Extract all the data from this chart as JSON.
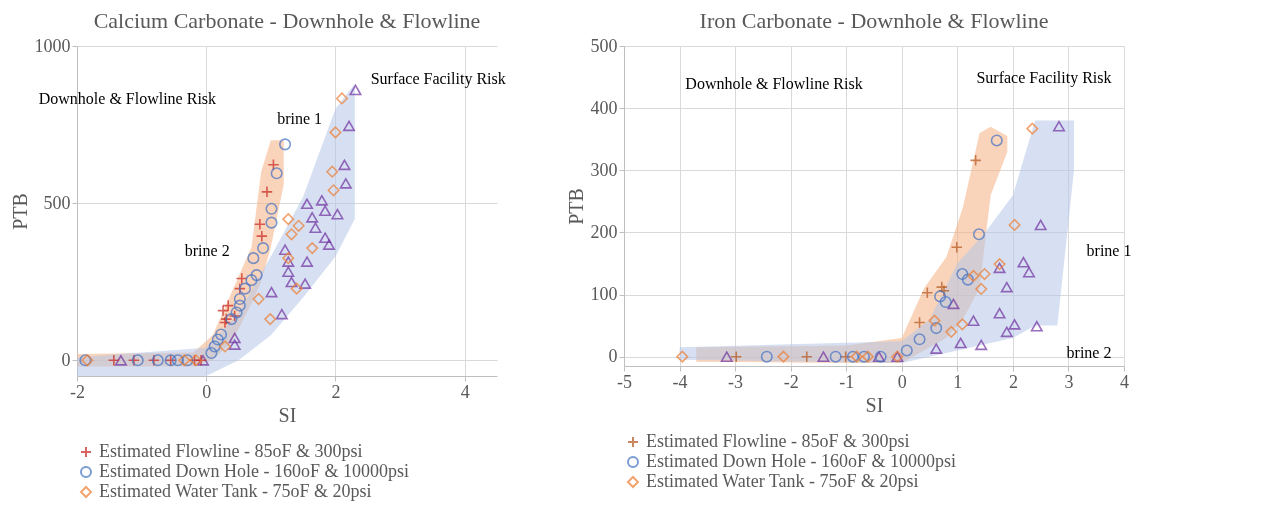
{
  "chart_data": [
    {
      "type": "scatter",
      "title": "Calcium Carbonate - Downhole & Flowline",
      "xlabel": "SI",
      "ylabel": "PTB",
      "xlim": [
        -2,
        4.5
      ],
      "ylim": [
        -50,
        1000
      ],
      "xticks": [
        -2,
        0,
        2,
        4
      ],
      "yticks": [
        0,
        500,
        1000
      ],
      "grid": true,
      "legend": "bottom",
      "series": [
        {
          "type": "line",
          "color": "#f4b183",
          "x": [
            -2,
            -0.2,
            0.1,
            0.4,
            0.7,
            0.85,
            1.0,
            1.2
          ],
          "values": [
            null,
            null,
            null,
            null,
            null,
            null,
            null,
            null
          ],
          "lower": [
            -20,
            -20,
            0,
            60,
            180,
            250,
            360,
            560
          ],
          "upper": [
            20,
            25,
            80,
            220,
            360,
            600,
            700,
            700
          ]
        },
        {
          "type": "line",
          "color": "#b4c7e7",
          "x": [
            -2,
            0,
            0.5,
            1.0,
            1.5,
            2.0,
            2.3
          ],
          "values": [
            null,
            null,
            null,
            null,
            null,
            null,
            null
          ],
          "lower": [
            -50,
            -50,
            0,
            80,
            200,
            330,
            450
          ],
          "upper": [
            10,
            40,
            150,
            330,
            520,
            800,
            880
          ]
        },
        {
          "name": "Estimated Flowline - 85oF & 300psi",
          "color": "#c8241e",
          "marker": "cross",
          "x": [
            -1.43,
            -1.12,
            -0.81,
            -0.55,
            -0.18,
            -0.08,
            0.29,
            0.26,
            0.31,
            0.34,
            0.44,
            0.52,
            0.55,
            0.86,
            0.83,
            0.94,
            1.04
          ],
          "values": [
            0,
            0,
            0,
            0,
            0,
            0,
            120,
            158,
            131,
            174,
            141,
            228,
            260,
            395,
            433,
            536,
            622
          ]
        },
        {
          "name": "Estimated Down Hole - 160oF & 10000psi",
          "color": "#4472c4",
          "marker": "circle",
          "x": [
            -1.87,
            -1.06,
            -0.75,
            -0.55,
            -0.44,
            -0.29,
            0.08,
            0.13,
            0.18,
            0.23,
            0.39,
            0.47,
            0.52,
            0.52,
            0.6,
            0.7,
            0.78,
            0.73,
            0.88,
            1.01,
            1.01,
            1.09,
            1.22
          ],
          "values": [
            0,
            0,
            0,
            0,
            0,
            0,
            23,
            44,
            66,
            82,
            131,
            152,
            174,
            195,
            228,
            255,
            271,
            325,
            357,
            438,
            482,
            595,
            687
          ]
        },
        {
          "name": "Estimated Water Tank - 75oF & 20psi",
          "color": "#ed7d31",
          "marker": "diamond",
          "x": [
            -1.84,
            -0.34,
            -0.16,
            0.29,
            0.81,
            0.99,
            1.27,
            1.43,
            1.32,
            1.27,
            1.4,
            1.64,
            1.95,
            1.97,
            2.0,
            2.1
          ],
          "values": [
            0,
            0,
            0,
            44,
            195,
            131,
            449,
            428,
            401,
            325,
            228,
            357,
            600,
            541,
            725,
            833
          ]
        },
        {
          "color": "#7030a0",
          "marker": "triangle",
          "x": [
            -1.32,
            -0.05,
            0.44,
            0.44,
            1.01,
            1.17,
            1.22,
            1.27,
            1.27,
            1.32,
            1.53,
            1.56,
            1.56,
            1.64,
            1.79,
            1.84,
            1.69,
            1.84,
            1.9,
            2.03,
            2.16,
            2.14,
            2.21,
            2.31
          ],
          "values": [
            0,
            0,
            71,
            50,
            217,
            147,
            352,
            314,
            282,
            249,
            244,
            314,
            498,
            455,
            509,
            476,
            422,
            390,
            368,
            465,
            563,
            622,
            746,
            860
          ]
        }
      ],
      "annotations": [
        "Downhole & Flowline Risk",
        "Surface Facility Risk",
        "brine 1",
        "brine 2"
      ]
    },
    {
      "type": "scatter",
      "title": "Iron Carbonate - Downhole & Flowline",
      "xlabel": "SI",
      "ylabel": "PTB",
      "xlim": [
        -5,
        4
      ],
      "ylim": [
        -15,
        500
      ],
      "xticks": [
        -5,
        -4,
        -3,
        -2,
        -1,
        0,
        1,
        2,
        3,
        4
      ],
      "yticks": [
        0,
        100,
        200,
        300,
        400,
        500
      ],
      "grid": true,
      "legend": "bottom",
      "series": [
        {
          "type": "line",
          "color": "#f4b183",
          "x": [
            -3.7,
            -1,
            0,
            0.4,
            0.8,
            1.1,
            1.4,
            1.6,
            1.9
          ],
          "values": [
            null,
            null,
            null,
            null,
            null,
            null,
            null,
            null,
            null
          ],
          "lower": [
            -8,
            -10,
            -10,
            10,
            30,
            60,
            110,
            260,
            330
          ],
          "upper": [
            15,
            18,
            30,
            110,
            160,
            240,
            360,
            370,
            355
          ]
        },
        {
          "type": "line",
          "color": "#b4c7e7",
          "x": [
            -4,
            0,
            0.5,
            1.0,
            1.5,
            2.0,
            2.4,
            2.8,
            3.1
          ],
          "values": [
            null,
            null,
            null,
            null,
            null,
            null,
            null,
            null,
            null
          ],
          "lower": [
            -5,
            -10,
            0,
            10,
            20,
            30,
            50,
            50,
            300
          ],
          "upper": [
            15,
            25,
            60,
            150,
            200,
            260,
            380,
            380,
            380
          ]
        },
        {
          "name": "Estimated Flowline - 85oF & 300psi",
          "color": "#b5541b",
          "marker": "cross",
          "x": [
            -2.98,
            -1.71,
            -1.01,
            0.32,
            0.46,
            0.76,
            0.72,
            0.99,
            1.33
          ],
          "values": [
            0,
            0,
            0,
            55,
            103,
            106,
            112,
            176,
            316
          ]
        },
        {
          "name": "Estimated Down Hole - 160oF & 10000psi",
          "color": "#4472c4",
          "marker": "circle",
          "x": [
            -2.43,
            -1.19,
            -0.88,
            -0.68,
            -0.38,
            0.09,
            0.32,
            0.62,
            0.69,
            0.79,
            1.09,
            1.19,
            1.39,
            1.71
          ],
          "values": [
            0,
            0,
            0,
            0,
            0,
            10,
            28,
            46,
            97,
            88,
            133,
            124,
            197,
            348
          ]
        },
        {
          "name": "Estimated Water Tank - 75oF & 20psi",
          "color": "#ed7d31",
          "marker": "diamond",
          "x": [
            -3.95,
            -2.13,
            -0.81,
            -0.61,
            -0.08,
            0.59,
            1.09,
            1.29,
            1.49,
            1.43,
            1.76,
            2.03,
            2.35,
            0.89
          ],
          "values": [
            0,
            0,
            0,
            0,
            0,
            58,
            52,
            130,
            133,
            109,
            149,
            212,
            367,
            40
          ]
        },
        {
          "color": "#7030a0",
          "marker": "triangle",
          "x": [
            -3.15,
            -1.41,
            -0.41,
            -0.08,
            0.93,
            0.62,
            1.06,
            1.29,
            1.43,
            1.76,
            1.89,
            1.76,
            1.89,
            2.03,
            2.19,
            2.29,
            2.43,
            2.5,
            2.83
          ],
          "values": [
            0,
            0,
            0,
            0,
            85,
            13,
            22,
            58,
            19,
            143,
            112,
            70,
            40,
            52,
            152,
            136,
            49,
            212,
            371
          ]
        }
      ],
      "annotations": [
        "Downhole & Flowline Risk",
        "Surface Facility Risk",
        "brine 1",
        "brine 2"
      ]
    }
  ]
}
